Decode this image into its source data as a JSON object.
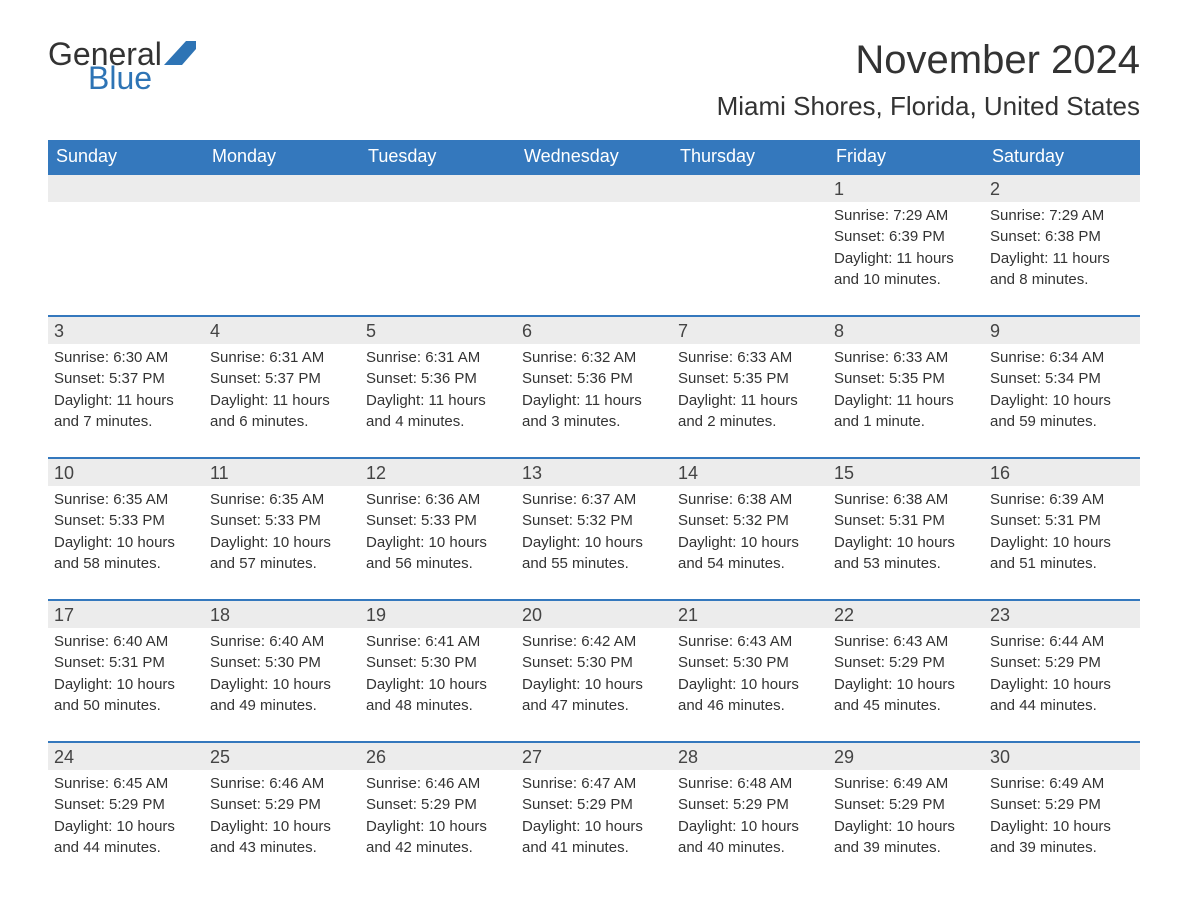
{
  "brand": {
    "part1": "General",
    "part2": "Blue",
    "accent_color": "#2e74b5",
    "text_color": "#333333"
  },
  "title": "November 2024",
  "location": "Miami Shores, Florida, United States",
  "colors": {
    "header_bg": "#3478bd",
    "header_text": "#ffffff",
    "row_divider": "#3478bd",
    "daynum_bg": "#ececec",
    "body_text": "#333333",
    "page_bg": "#ffffff"
  },
  "day_names": [
    "Sunday",
    "Monday",
    "Tuesday",
    "Wednesday",
    "Thursday",
    "Friday",
    "Saturday"
  ],
  "weeks": [
    [
      null,
      null,
      null,
      null,
      null,
      {
        "n": "1",
        "sunrise": "Sunrise: 7:29 AM",
        "sunset": "Sunset: 6:39 PM",
        "day1": "Daylight: 11 hours",
        "day2": "and 10 minutes."
      },
      {
        "n": "2",
        "sunrise": "Sunrise: 7:29 AM",
        "sunset": "Sunset: 6:38 PM",
        "day1": "Daylight: 11 hours",
        "day2": "and 8 minutes."
      }
    ],
    [
      {
        "n": "3",
        "sunrise": "Sunrise: 6:30 AM",
        "sunset": "Sunset: 5:37 PM",
        "day1": "Daylight: 11 hours",
        "day2": "and 7 minutes."
      },
      {
        "n": "4",
        "sunrise": "Sunrise: 6:31 AM",
        "sunset": "Sunset: 5:37 PM",
        "day1": "Daylight: 11 hours",
        "day2": "and 6 minutes."
      },
      {
        "n": "5",
        "sunrise": "Sunrise: 6:31 AM",
        "sunset": "Sunset: 5:36 PM",
        "day1": "Daylight: 11 hours",
        "day2": "and 4 minutes."
      },
      {
        "n": "6",
        "sunrise": "Sunrise: 6:32 AM",
        "sunset": "Sunset: 5:36 PM",
        "day1": "Daylight: 11 hours",
        "day2": "and 3 minutes."
      },
      {
        "n": "7",
        "sunrise": "Sunrise: 6:33 AM",
        "sunset": "Sunset: 5:35 PM",
        "day1": "Daylight: 11 hours",
        "day2": "and 2 minutes."
      },
      {
        "n": "8",
        "sunrise": "Sunrise: 6:33 AM",
        "sunset": "Sunset: 5:35 PM",
        "day1": "Daylight: 11 hours",
        "day2": "and 1 minute."
      },
      {
        "n": "9",
        "sunrise": "Sunrise: 6:34 AM",
        "sunset": "Sunset: 5:34 PM",
        "day1": "Daylight: 10 hours",
        "day2": "and 59 minutes."
      }
    ],
    [
      {
        "n": "10",
        "sunrise": "Sunrise: 6:35 AM",
        "sunset": "Sunset: 5:33 PM",
        "day1": "Daylight: 10 hours",
        "day2": "and 58 minutes."
      },
      {
        "n": "11",
        "sunrise": "Sunrise: 6:35 AM",
        "sunset": "Sunset: 5:33 PM",
        "day1": "Daylight: 10 hours",
        "day2": "and 57 minutes."
      },
      {
        "n": "12",
        "sunrise": "Sunrise: 6:36 AM",
        "sunset": "Sunset: 5:33 PM",
        "day1": "Daylight: 10 hours",
        "day2": "and 56 minutes."
      },
      {
        "n": "13",
        "sunrise": "Sunrise: 6:37 AM",
        "sunset": "Sunset: 5:32 PM",
        "day1": "Daylight: 10 hours",
        "day2": "and 55 minutes."
      },
      {
        "n": "14",
        "sunrise": "Sunrise: 6:38 AM",
        "sunset": "Sunset: 5:32 PM",
        "day1": "Daylight: 10 hours",
        "day2": "and 54 minutes."
      },
      {
        "n": "15",
        "sunrise": "Sunrise: 6:38 AM",
        "sunset": "Sunset: 5:31 PM",
        "day1": "Daylight: 10 hours",
        "day2": "and 53 minutes."
      },
      {
        "n": "16",
        "sunrise": "Sunrise: 6:39 AM",
        "sunset": "Sunset: 5:31 PM",
        "day1": "Daylight: 10 hours",
        "day2": "and 51 minutes."
      }
    ],
    [
      {
        "n": "17",
        "sunrise": "Sunrise: 6:40 AM",
        "sunset": "Sunset: 5:31 PM",
        "day1": "Daylight: 10 hours",
        "day2": "and 50 minutes."
      },
      {
        "n": "18",
        "sunrise": "Sunrise: 6:40 AM",
        "sunset": "Sunset: 5:30 PM",
        "day1": "Daylight: 10 hours",
        "day2": "and 49 minutes."
      },
      {
        "n": "19",
        "sunrise": "Sunrise: 6:41 AM",
        "sunset": "Sunset: 5:30 PM",
        "day1": "Daylight: 10 hours",
        "day2": "and 48 minutes."
      },
      {
        "n": "20",
        "sunrise": "Sunrise: 6:42 AM",
        "sunset": "Sunset: 5:30 PM",
        "day1": "Daylight: 10 hours",
        "day2": "and 47 minutes."
      },
      {
        "n": "21",
        "sunrise": "Sunrise: 6:43 AM",
        "sunset": "Sunset: 5:30 PM",
        "day1": "Daylight: 10 hours",
        "day2": "and 46 minutes."
      },
      {
        "n": "22",
        "sunrise": "Sunrise: 6:43 AM",
        "sunset": "Sunset: 5:29 PM",
        "day1": "Daylight: 10 hours",
        "day2": "and 45 minutes."
      },
      {
        "n": "23",
        "sunrise": "Sunrise: 6:44 AM",
        "sunset": "Sunset: 5:29 PM",
        "day1": "Daylight: 10 hours",
        "day2": "and 44 minutes."
      }
    ],
    [
      {
        "n": "24",
        "sunrise": "Sunrise: 6:45 AM",
        "sunset": "Sunset: 5:29 PM",
        "day1": "Daylight: 10 hours",
        "day2": "and 44 minutes."
      },
      {
        "n": "25",
        "sunrise": "Sunrise: 6:46 AM",
        "sunset": "Sunset: 5:29 PM",
        "day1": "Daylight: 10 hours",
        "day2": "and 43 minutes."
      },
      {
        "n": "26",
        "sunrise": "Sunrise: 6:46 AM",
        "sunset": "Sunset: 5:29 PM",
        "day1": "Daylight: 10 hours",
        "day2": "and 42 minutes."
      },
      {
        "n": "27",
        "sunrise": "Sunrise: 6:47 AM",
        "sunset": "Sunset: 5:29 PM",
        "day1": "Daylight: 10 hours",
        "day2": "and 41 minutes."
      },
      {
        "n": "28",
        "sunrise": "Sunrise: 6:48 AM",
        "sunset": "Sunset: 5:29 PM",
        "day1": "Daylight: 10 hours",
        "day2": "and 40 minutes."
      },
      {
        "n": "29",
        "sunrise": "Sunrise: 6:49 AM",
        "sunset": "Sunset: 5:29 PM",
        "day1": "Daylight: 10 hours",
        "day2": "and 39 minutes."
      },
      {
        "n": "30",
        "sunrise": "Sunrise: 6:49 AM",
        "sunset": "Sunset: 5:29 PM",
        "day1": "Daylight: 10 hours",
        "day2": "and 39 minutes."
      }
    ]
  ]
}
